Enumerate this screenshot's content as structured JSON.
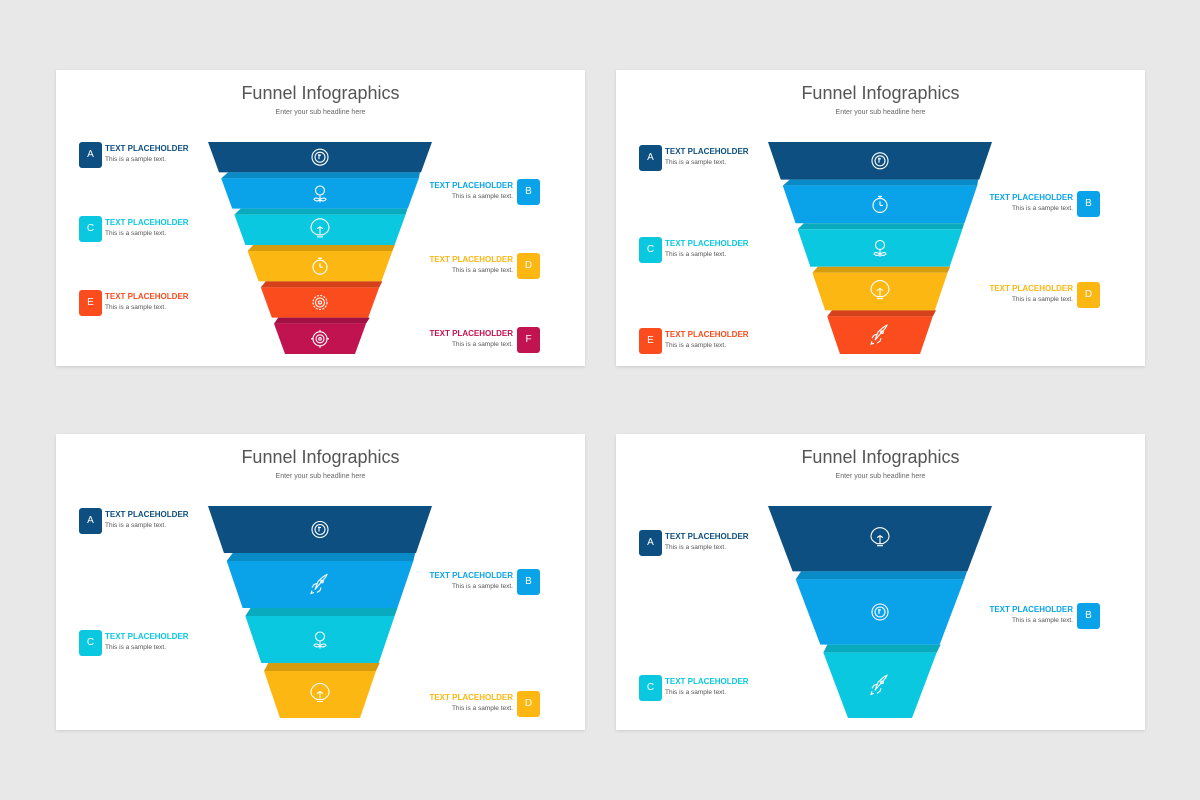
{
  "colors": {
    "A": "#0d4f80",
    "B": "#0aa3ea",
    "C": "#0ac8e0",
    "D": "#fcb712",
    "E": "#fb4c1e",
    "F": "#c0134f"
  },
  "slides": [
    {
      "title": "Funnel Infographics",
      "subtitle": "Enter your sub headline here",
      "layers": [
        {
          "letter": "A",
          "icon": "money-person-icon",
          "heading": "TEXT PLACEHOLDER",
          "text": "This is a sample text."
        },
        {
          "letter": "B",
          "icon": "money-plant-icon",
          "heading": "TEXT PLACEHOLDER",
          "text": "This is a sample text."
        },
        {
          "letter": "C",
          "icon": "brain-bulb-icon",
          "heading": "TEXT PLACEHOLDER",
          "text": "This is a sample text."
        },
        {
          "letter": "D",
          "icon": "stopwatch-icon",
          "heading": "TEXT PLACEHOLDER",
          "text": "This is a sample text."
        },
        {
          "letter": "E",
          "icon": "gear-icon",
          "heading": "TEXT PLACEHOLDER",
          "text": "This is a sample text."
        },
        {
          "letter": "F",
          "icon": "target-icon",
          "heading": "TEXT PLACEHOLDER",
          "text": "This is a sample text."
        }
      ]
    },
    {
      "title": "Funnel Infographics",
      "subtitle": "Enter your sub headline here",
      "layers": [
        {
          "letter": "A",
          "icon": "money-person-icon",
          "heading": "TEXT PLACEHOLDER",
          "text": "This is a sample text."
        },
        {
          "letter": "B",
          "icon": "stopwatch-icon",
          "heading": "TEXT PLACEHOLDER",
          "text": "This is a sample text."
        },
        {
          "letter": "C",
          "icon": "money-plant-icon",
          "heading": "TEXT PLACEHOLDER",
          "text": "This is a sample text."
        },
        {
          "letter": "D",
          "icon": "brain-bulb-icon",
          "heading": "TEXT PLACEHOLDER",
          "text": "This is a sample text."
        },
        {
          "letter": "E",
          "icon": "rocket-icon",
          "heading": "TEXT PLACEHOLDER",
          "text": "This is a sample text."
        }
      ]
    },
    {
      "title": "Funnel Infographics",
      "subtitle": "Enter your sub headline here",
      "layers": [
        {
          "letter": "A",
          "icon": "money-person-icon",
          "heading": "TEXT PLACEHOLDER",
          "text": "This is a sample text."
        },
        {
          "letter": "B",
          "icon": "rocket-icon",
          "heading": "TEXT PLACEHOLDER",
          "text": "This is a sample text."
        },
        {
          "letter": "C",
          "icon": "money-plant-icon",
          "heading": "TEXT PLACEHOLDER",
          "text": "This is a sample text."
        },
        {
          "letter": "D",
          "icon": "brain-bulb-icon",
          "heading": "TEXT PLACEHOLDER",
          "text": "This is a sample text."
        }
      ]
    },
    {
      "title": "Funnel Infographics",
      "subtitle": "Enter your sub headline here",
      "layers": [
        {
          "letter": "A",
          "icon": "brain-bulb-icon",
          "heading": "TEXT PLACEHOLDER",
          "text": "This is a sample text."
        },
        {
          "letter": "B",
          "icon": "money-person-icon",
          "heading": "TEXT PLACEHOLDER",
          "text": "This is a sample text."
        },
        {
          "letter": "C",
          "icon": "rocket-icon",
          "heading": "TEXT PLACEHOLDER",
          "text": "This is a sample text."
        }
      ]
    }
  ]
}
